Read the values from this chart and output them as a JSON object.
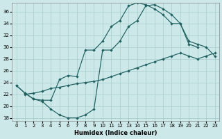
{
  "xlabel": "Humidex (Indice chaleur)",
  "xlim": [
    -0.5,
    23.5
  ],
  "ylim": [
    17.5,
    37.5
  ],
  "yticks": [
    18,
    20,
    22,
    24,
    26,
    28,
    30,
    32,
    34,
    36
  ],
  "xticks": [
    0,
    1,
    2,
    3,
    4,
    5,
    6,
    7,
    8,
    9,
    10,
    11,
    12,
    13,
    14,
    15,
    16,
    17,
    18,
    19,
    20,
    21,
    22,
    23
  ],
  "bg_color": "#cce8e8",
  "line_color": "#206060",
  "grid_color": "#a8cccc",
  "curve1_x": [
    0,
    1,
    2,
    3,
    4,
    5,
    6,
    7,
    8,
    9,
    10,
    11,
    12,
    13,
    14,
    15,
    16,
    17,
    18,
    19,
    20,
    21
  ],
  "curve1_y": [
    23.5,
    22.2,
    21.2,
    20.8,
    19.5,
    18.5,
    18.0,
    18.0,
    18.5,
    19.5,
    29.5,
    29.5,
    31.0,
    33.5,
    34.5,
    37.0,
    37.2,
    36.5,
    35.5,
    34.0,
    30.5,
    30.0
  ],
  "curve2_x": [
    0,
    1,
    2,
    3,
    4,
    5,
    6,
    7,
    8,
    9,
    10,
    11,
    12,
    13,
    14,
    15,
    16,
    17,
    18,
    19,
    20,
    21,
    22,
    23
  ],
  "curve2_y": [
    23.5,
    22.2,
    21.2,
    21.0,
    21.0,
    24.5,
    25.2,
    25.0,
    29.5,
    29.5,
    31.0,
    33.5,
    34.5,
    37.0,
    37.5,
    37.2,
    36.5,
    35.5,
    34.0,
    34.0,
    31.0,
    30.5,
    30.0,
    28.5
  ],
  "curve3_x": [
    1,
    2,
    3,
    4,
    5,
    6,
    7,
    8,
    9,
    10,
    11,
    12,
    13,
    14,
    15,
    16,
    17,
    18,
    19,
    20,
    21,
    22,
    23
  ],
  "curve3_y": [
    22.0,
    22.2,
    22.5,
    23.0,
    23.2,
    23.5,
    23.8,
    24.0,
    24.2,
    24.5,
    25.0,
    25.5,
    26.0,
    26.5,
    27.0,
    27.5,
    28.0,
    28.5,
    29.0,
    28.5,
    28.0,
    28.5,
    29.0
  ]
}
